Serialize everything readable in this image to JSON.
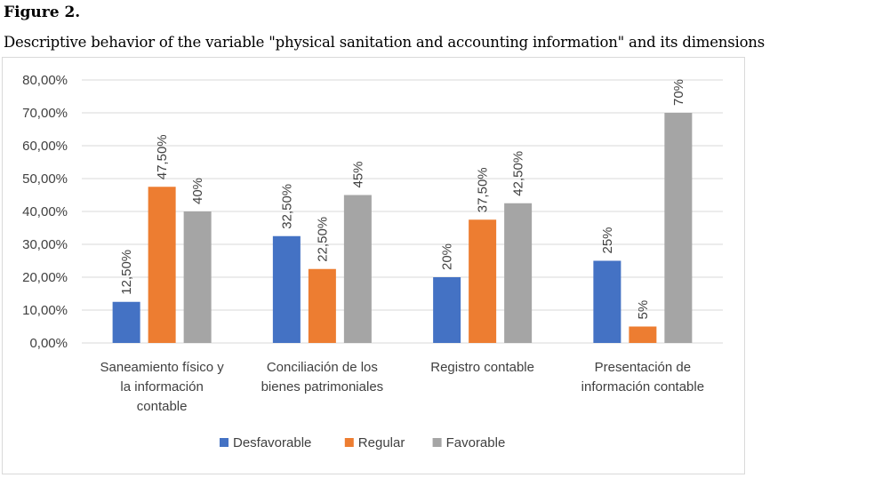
{
  "figure": {
    "label": "Figure 2.",
    "caption": "Descriptive behavior of the variable \"physical sanitation and accounting information\" and its dimensions"
  },
  "chart_data": {
    "type": "bar",
    "categories": [
      [
        "Saneamiento físico y",
        "la información",
        "contable"
      ],
      [
        "Conciliación de los",
        "bienes patrimoniales"
      ],
      [
        "Registro contable"
      ],
      [
        "Presentación de",
        "información contable"
      ]
    ],
    "series": [
      {
        "name": "Desfavorable",
        "color": "#4472c4",
        "values": [
          12.5,
          32.5,
          20,
          25
        ],
        "labels": [
          "12,50%",
          "32,50%",
          "20%",
          "25%"
        ]
      },
      {
        "name": "Regular",
        "color": "#ed7d31",
        "values": [
          47.5,
          22.5,
          37.5,
          5
        ],
        "labels": [
          "47,50%",
          "22,50%",
          "37,50%",
          "5%"
        ]
      },
      {
        "name": "Favorable",
        "color": "#a5a5a5",
        "values": [
          40,
          45,
          42.5,
          70
        ],
        "labels": [
          "40%",
          "45%",
          "42,50%",
          "70%"
        ]
      }
    ],
    "ylim": [
      0,
      80
    ],
    "yticks": [
      0,
      10,
      20,
      30,
      40,
      50,
      60,
      70,
      80
    ],
    "ytick_labels": [
      "0,00%",
      "10,00%",
      "20,00%",
      "30,00%",
      "40,00%",
      "50,00%",
      "60,00%",
      "70,00%",
      "80,00%"
    ],
    "grid": true,
    "legend_position": "bottom",
    "gridline_color": "#d9d9d9"
  }
}
